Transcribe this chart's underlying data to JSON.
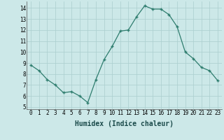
{
  "x": [
    0,
    1,
    2,
    3,
    4,
    5,
    6,
    7,
    8,
    9,
    10,
    11,
    12,
    13,
    14,
    15,
    16,
    17,
    18,
    19,
    20,
    21,
    22,
    23
  ],
  "y": [
    8.8,
    8.3,
    7.5,
    7.0,
    6.3,
    6.4,
    6.0,
    5.4,
    7.5,
    9.3,
    10.5,
    11.9,
    12.0,
    13.2,
    14.2,
    13.9,
    13.9,
    13.4,
    12.3,
    10.0,
    9.4,
    8.6,
    8.3,
    7.4
  ],
  "xlabel": "Humidex (Indice chaleur)",
  "ylim": [
    4.8,
    14.6
  ],
  "xlim": [
    -0.5,
    23.5
  ],
  "yticks": [
    5,
    6,
    7,
    8,
    9,
    10,
    11,
    12,
    13,
    14
  ],
  "xticks": [
    0,
    1,
    2,
    3,
    4,
    5,
    6,
    7,
    8,
    9,
    10,
    11,
    12,
    13,
    14,
    15,
    16,
    17,
    18,
    19,
    20,
    21,
    22,
    23
  ],
  "line_color": "#2e7d6e",
  "marker_color": "#2e7d6e",
  "bg_color": "#cce8e8",
  "grid_color": "#aacece",
  "xlabel_fontsize": 7,
  "tick_fontsize": 5.5
}
